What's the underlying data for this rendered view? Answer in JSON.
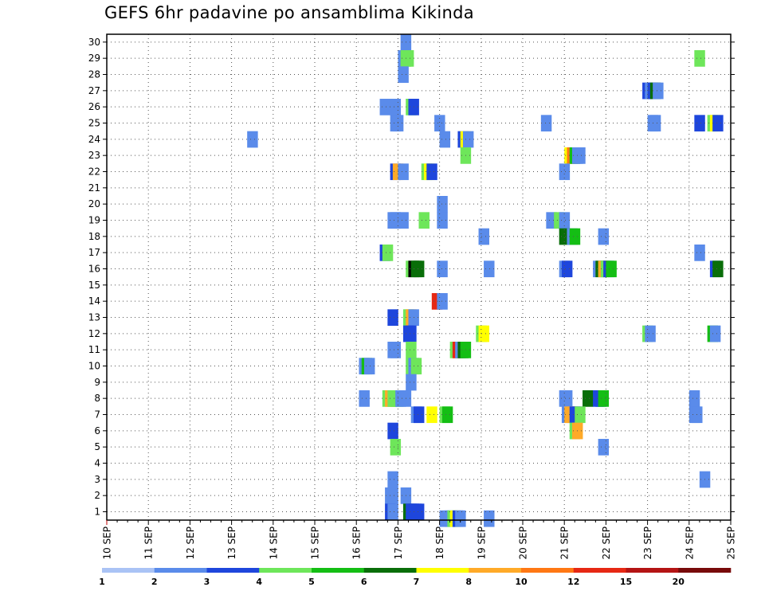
{
  "chart_data": {
    "type": "heatmap",
    "title": "GEFS 6hr padavine po ansamblima Kikinda",
    "xlabel": "",
    "ylabel": "",
    "x_unit_step": "6h",
    "x_range": [
      "10 SEP 00z",
      "25 SEP 00z"
    ],
    "y_range": [
      0,
      30
    ],
    "x_tick_labels": [
      "10 SEP",
      "11 SEP",
      "12 SEP",
      "13 SEP",
      "14 SEP",
      "15 SEP",
      "16 SEP",
      "17 SEP",
      "18 SEP",
      "19 SEP",
      "20 SEP",
      "21 SEP",
      "22 SEP",
      "23 SEP",
      "24 SEP",
      "25 SEP"
    ],
    "y_tick_labels": [
      "1",
      "2",
      "3",
      "4",
      "5",
      "6",
      "7",
      "8",
      "9",
      "10",
      "11",
      "12",
      "13",
      "14",
      "15",
      "16",
      "17",
      "18",
      "19",
      "20",
      "21",
      "22",
      "23",
      "24",
      "25",
      "26",
      "27",
      "28",
      "29",
      "30"
    ],
    "grid": "dotted",
    "colorbar": {
      "labels": [
        "1",
        "2",
        "3",
        "4",
        "5",
        "6",
        "7",
        "8",
        "10",
        "12",
        "15",
        "20"
      ],
      "colors": [
        "#aac3f5",
        "#5a8bea",
        "#1e46dc",
        "#6ee65a",
        "#14be14",
        "#096e09",
        "#ffff00",
        "#ffaa28",
        "#ff7814",
        "#e62814",
        "#b41414",
        "#780a0a"
      ]
    },
    "cells": [
      [
        30,
        28.25,
        1
      ],
      [
        29,
        28,
        1
      ],
      [
        29,
        28.25,
        3
      ],
      [
        29,
        28.5,
        3
      ],
      [
        29,
        56.5,
        3
      ],
      [
        28,
        28,
        1
      ],
      [
        27,
        51.5,
        2
      ],
      [
        27,
        51.75,
        1
      ],
      [
        27,
        52,
        2
      ],
      [
        27,
        52.25,
        5
      ],
      [
        27,
        52.5,
        1
      ],
      [
        26,
        26.25,
        1
      ],
      [
        26,
        27.25,
        1
      ],
      [
        26,
        28.75,
        3
      ],
      [
        26,
        29,
        2
      ],
      [
        25,
        27.25,
        1
      ],
      [
        25,
        27.5,
        1
      ],
      [
        25,
        31.5,
        1
      ],
      [
        25,
        41.75,
        1
      ],
      [
        25,
        52,
        1
      ],
      [
        25,
        52.25,
        1
      ],
      [
        25,
        56.5,
        2
      ],
      [
        25,
        57.75,
        3
      ],
      [
        25,
        58,
        6
      ],
      [
        25,
        58.25,
        2
      ],
      [
        24,
        13.5,
        1
      ],
      [
        24,
        32,
        1
      ],
      [
        24,
        33.75,
        2
      ],
      [
        24,
        34,
        6
      ],
      [
        24,
        34.25,
        1
      ],
      [
        23,
        34,
        3
      ],
      [
        23,
        44,
        6
      ],
      [
        23,
        44.25,
        8
      ],
      [
        23,
        44.5,
        4
      ],
      [
        23,
        44.75,
        1
      ],
      [
        23,
        45,
        1
      ],
      [
        22,
        27.25,
        2
      ],
      [
        22,
        27.5,
        7
      ],
      [
        22,
        28,
        1
      ],
      [
        22,
        30.25,
        3
      ],
      [
        22,
        30.5,
        6
      ],
      [
        22,
        30.75,
        2
      ],
      [
        22,
        43.5,
        1
      ],
      [
        20,
        31.75,
        1
      ],
      [
        19,
        27,
        1
      ],
      [
        19,
        27.25,
        1
      ],
      [
        19,
        28,
        1
      ],
      [
        19,
        30,
        3
      ],
      [
        19,
        31.75,
        1
      ],
      [
        19,
        42.25,
        1
      ],
      [
        19,
        43,
        3
      ],
      [
        19,
        43.5,
        1
      ],
      [
        18,
        35.75,
        1
      ],
      [
        18,
        43.5,
        5
      ],
      [
        18,
        44.25,
        1
      ],
      [
        18,
        44.5,
        4
      ],
      [
        18,
        47.25,
        1
      ],
      [
        17,
        26.25,
        2
      ],
      [
        17,
        26.5,
        3
      ],
      [
        17,
        56.5,
        1
      ],
      [
        16,
        28.75,
        3
      ],
      [
        16,
        29,
        12
      ],
      [
        16,
        29.25,
        5
      ],
      [
        16,
        29.5,
        5
      ],
      [
        16,
        31.75,
        1
      ],
      [
        16,
        36.25,
        1
      ],
      [
        16,
        43.5,
        1
      ],
      [
        16,
        43.75,
        2
      ],
      [
        16,
        46.75,
        1
      ],
      [
        16,
        47,
        5
      ],
      [
        16,
        47.25,
        7
      ],
      [
        16,
        47.5,
        3
      ],
      [
        16,
        47.75,
        2
      ],
      [
        16,
        48,
        4
      ],
      [
        16,
        58,
        2
      ],
      [
        16,
        58.25,
        5
      ],
      [
        14,
        31.25,
        9
      ],
      [
        14,
        31.75,
        1
      ],
      [
        13,
        27,
        2
      ],
      [
        13,
        28.5,
        3
      ],
      [
        13,
        28.75,
        7
      ],
      [
        13,
        29,
        1
      ],
      [
        12,
        28.5,
        2
      ],
      [
        12,
        28.75,
        2
      ],
      [
        12,
        35.5,
        3
      ],
      [
        12,
        35.75,
        6
      ],
      [
        12,
        51.5,
        3
      ],
      [
        12,
        51.75,
        1
      ],
      [
        12,
        57.75,
        4
      ],
      [
        12,
        58,
        1
      ],
      [
        11,
        27,
        1
      ],
      [
        11,
        27.25,
        1
      ],
      [
        11,
        28.75,
        3
      ],
      [
        11,
        33,
        3
      ],
      [
        11,
        33.25,
        9
      ],
      [
        11,
        33.5,
        1
      ],
      [
        11,
        33.75,
        5
      ],
      [
        11,
        34,
        4
      ],
      [
        10,
        24.25,
        1
      ],
      [
        10,
        24.5,
        4
      ],
      [
        10,
        24.75,
        1
      ],
      [
        10,
        28.75,
        3
      ],
      [
        10,
        29,
        1
      ],
      [
        10,
        29.25,
        3
      ],
      [
        9,
        28.75,
        1
      ],
      [
        8,
        24.25,
        1
      ],
      [
        8,
        26.5,
        3
      ],
      [
        8,
        26.75,
        7
      ],
      [
        8,
        27,
        3
      ],
      [
        8,
        27.25,
        3
      ],
      [
        8,
        27.5,
        3
      ],
      [
        8,
        27.75,
        1
      ],
      [
        8,
        28.25,
        1
      ],
      [
        8,
        43.5,
        1
      ],
      [
        8,
        43.75,
        1
      ],
      [
        8,
        45.75,
        5
      ],
      [
        8,
        46.75,
        2
      ],
      [
        8,
        47,
        2
      ],
      [
        8,
        47.25,
        4
      ],
      [
        8,
        56,
        1
      ],
      [
        7,
        29.25,
        1
      ],
      [
        7,
        29.5,
        2
      ],
      [
        7,
        30.75,
        6
      ],
      [
        7,
        32,
        3
      ],
      [
        7,
        32.25,
        4
      ],
      [
        7,
        43.75,
        1
      ],
      [
        7,
        44,
        7
      ],
      [
        7,
        44.25,
        7
      ],
      [
        7,
        44.5,
        2
      ],
      [
        7,
        44.75,
        2
      ],
      [
        7,
        45,
        3
      ],
      [
        7,
        56,
        1
      ],
      [
        7,
        56.25,
        1
      ],
      [
        6,
        27,
        2
      ],
      [
        6,
        44.5,
        3
      ],
      [
        6,
        44.75,
        7
      ],
      [
        5,
        27.25,
        3
      ],
      [
        5,
        47.25,
        1
      ],
      [
        3,
        27,
        1
      ],
      [
        3,
        57,
        1
      ],
      [
        2,
        26.75,
        1
      ],
      [
        2,
        27,
        1
      ],
      [
        2,
        28.25,
        1
      ],
      [
        1,
        26.75,
        2
      ],
      [
        1,
        27,
        1
      ],
      [
        1,
        28.5,
        5
      ],
      [
        1,
        28.75,
        2
      ],
      [
        1,
        29,
        2
      ],
      [
        1,
        29.25,
        2
      ],
      [
        1,
        29.5,
        2
      ],
      [
        0,
        32,
        1
      ],
      [
        0,
        32.5,
        1
      ],
      [
        0,
        32.75,
        3
      ],
      [
        0,
        33,
        6
      ],
      [
        0,
        33.25,
        2
      ],
      [
        0,
        33.5,
        1
      ],
      [
        0,
        36.25,
        1
      ]
    ]
  }
}
